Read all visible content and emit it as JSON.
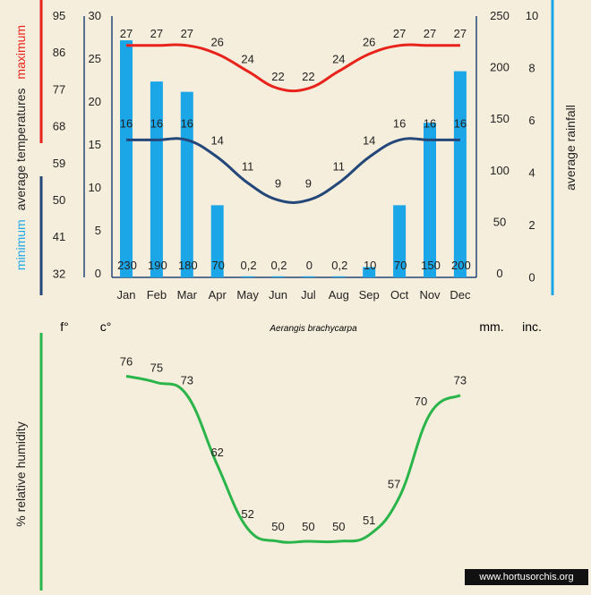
{
  "chart_data": [
    {
      "type": "bar+line",
      "title": "Aerangis brachycarpa",
      "categories": [
        "Jan",
        "Feb",
        "Mar",
        "Apr",
        "May",
        "Jun",
        "Jul",
        "Aug",
        "Sep",
        "Oct",
        "Nov",
        "Dec"
      ],
      "series": [
        {
          "name": "maximum",
          "axis": "celsius",
          "color": "#e8231c",
          "values": [
            27,
            27,
            27,
            26,
            24,
            22,
            22,
            24,
            26,
            27,
            27,
            27
          ]
        },
        {
          "name": "minimum",
          "axis": "celsius",
          "color": "#24477a",
          "values": [
            16,
            16,
            16,
            14,
            11,
            9,
            9,
            11,
            14,
            16,
            16,
            16
          ]
        },
        {
          "name": "average rainfall",
          "axis": "mm",
          "color": "#1ba6e8",
          "values": [
            230,
            190,
            180,
            70,
            0.2,
            0.2,
            0,
            0.2,
            10,
            70,
            150,
            200
          ]
        }
      ],
      "rain_labels": [
        "230",
        "190",
        "180",
        "70",
        "0,2",
        "0,2",
        "0",
        "0,2",
        "10",
        "70",
        "150",
        "200"
      ],
      "axes": {
        "fahrenheit": {
          "ticks": [
            "95",
            "86",
            "77",
            "68",
            "59",
            "50",
            "41",
            "32"
          ],
          "unit": "f°"
        },
        "celsius": {
          "range": [
            0,
            30
          ],
          "ticks": [
            "30",
            "25",
            "20",
            "15",
            "10",
            "5",
            "0"
          ],
          "unit": "c°"
        },
        "mm": {
          "range": [
            0,
            250
          ],
          "ticks": [
            "250",
            "200",
            "150",
            "100",
            "50",
            "0"
          ],
          "unit": "mm."
        },
        "inches": {
          "range": [
            0,
            10
          ],
          "ticks": [
            "10",
            "8",
            "6",
            "4",
            "2",
            "0"
          ],
          "unit": "inc."
        }
      },
      "ylabel_left": {
        "maximum": "maximum",
        "middle": "average  temperatures",
        "minimum": "minimum"
      },
      "ylabel_right": "average rainfall"
    },
    {
      "type": "line",
      "series": [
        {
          "name": "relative humidity",
          "color": "#2ab54b",
          "values": [
            76,
            75,
            73,
            62,
            52,
            50,
            50,
            50,
            51,
            57,
            70,
            73
          ]
        }
      ],
      "ylabel": "%  relative humidity"
    }
  ],
  "footer": {
    "credit": "www.hortusorchis.org"
  },
  "colors": {
    "background": "#f6eedc",
    "axis": "#24477a",
    "max": "#e8231c",
    "min": "#24477a",
    "rain": "#1ba6e8",
    "humidity": "#2ab54b"
  }
}
